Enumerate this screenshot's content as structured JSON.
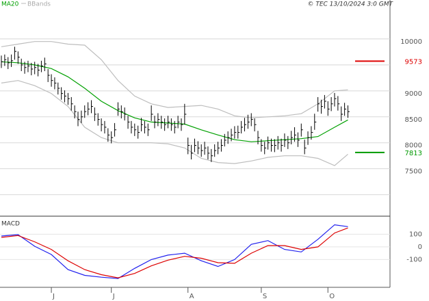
{
  "chart_data": [
    {
      "type": "ohlc",
      "legend": [
        "MA20",
        "BBands"
      ],
      "credit": "© TEC 13/10/2024 3:0 GMT",
      "categories": [
        null,
        null,
        null,
        null,
        null,
        null,
        null,
        null,
        null,
        null,
        null,
        null,
        null,
        null,
        null,
        "J",
        null,
        null,
        null,
        null,
        null,
        null,
        null,
        null,
        null,
        null,
        null,
        null,
        null,
        null,
        null,
        null,
        null,
        "J",
        null,
        null,
        null,
        null,
        null,
        null,
        null,
        null,
        null,
        null,
        null,
        null,
        null,
        null,
        null,
        null,
        null,
        null,
        null,
        null,
        null,
        null,
        "A",
        null,
        null,
        null,
        null,
        null,
        null,
        null,
        null,
        null,
        null,
        null,
        null,
        null,
        null,
        null,
        null,
        null,
        null,
        null,
        null,
        null,
        "S",
        null,
        null,
        null,
        null,
        null,
        null,
        null,
        null,
        null,
        null,
        null,
        null,
        null,
        null,
        null,
        null,
        null,
        null,
        null,
        "O",
        null,
        null,
        null,
        null,
        null,
        null
      ],
      "high": [
        9680,
        9700,
        9650,
        9700,
        9850,
        9760,
        9620,
        9560,
        9580,
        9540,
        9560,
        9520,
        9580,
        9640,
        9420,
        9320,
        9260,
        9160,
        9070,
        9010,
        8960,
        8880,
        8720,
        8600,
        8620,
        8720,
        8780,
        8820,
        8680,
        8570,
        8470,
        8420,
        8280,
        8220,
        8380,
        8780,
        8720,
        8680,
        8520,
        8420,
        8370,
        8330,
        8480,
        8420,
        8370,
        8720,
        8520,
        8570,
        8520,
        8470,
        8520,
        8470,
        8420,
        8520,
        8470,
        8750,
        8100,
        7960,
        8080,
        8030,
        7970,
        8020,
        7930,
        7880,
        7970,
        8020,
        8070,
        8170,
        8220,
        8270,
        8320,
        8330,
        8420,
        8480,
        8540,
        8570,
        8470,
        8230,
        8070,
        8020,
        8120,
        8080,
        8070,
        8130,
        8080,
        8180,
        8130,
        8230,
        8300,
        8200,
        8370,
        8060,
        8220,
        8320,
        8560,
        8880,
        8830,
        8920,
        8800,
        8880,
        8960,
        8900,
        8700,
        8770,
        8720
      ],
      "low": [
        9440,
        9480,
        9420,
        9460,
        9600,
        9520,
        9380,
        9330,
        9360,
        9300,
        9320,
        9280,
        9360,
        9380,
        9170,
        9080,
        9030,
        8930,
        8830,
        8780,
        8730,
        8620,
        8470,
        8320,
        8380,
        8480,
        8530,
        8570,
        8420,
        8330,
        8220,
        8180,
        8020,
        7990,
        8120,
        8520,
        8470,
        8430,
        8270,
        8180,
        8130,
        8080,
        8220,
        8180,
        8130,
        8420,
        8280,
        8320,
        8270,
        8230,
        8280,
        8230,
        8180,
        8280,
        8230,
        8350,
        7780,
        7680,
        7820,
        7780,
        7730,
        7770,
        7680,
        7630,
        7730,
        7780,
        7830,
        7930,
        7980,
        8030,
        8080,
        8080,
        8180,
        8220,
        8270,
        8320,
        8220,
        7970,
        7830,
        7780,
        7870,
        7830,
        7820,
        7870,
        7830,
        7920,
        7880,
        7970,
        8020,
        7920,
        8120,
        7780,
        7960,
        8060,
        8250,
        8600,
        8560,
        8660,
        8520,
        8610,
        8700,
        8620,
        8420,
        8520,
        8480
      ],
      "close": [
        9560,
        9600,
        9540,
        9580,
        9760,
        9650,
        9500,
        9450,
        9480,
        9420,
        9450,
        9400,
        9480,
        9520,
        9300,
        9200,
        9150,
        9050,
        8950,
        8900,
        8850,
        8750,
        8600,
        8450,
        8500,
        8600,
        8650,
        8700,
        8550,
        8450,
        8350,
        8300,
        8150,
        8100,
        8250,
        8650,
        8600,
        8550,
        8400,
        8300,
        8250,
        8200,
        8350,
        8300,
        8250,
        8550,
        8400,
        8450,
        8400,
        8350,
        8400,
        8350,
        8300,
        8400,
        8350,
        8550,
        7950,
        7800,
        7950,
        7900,
        7850,
        7900,
        7800,
        7750,
        7850,
        7900,
        7950,
        8050,
        8100,
        8150,
        8200,
        8200,
        8300,
        8350,
        8400,
        8450,
        8350,
        8100,
        7950,
        7900,
        8000,
        7950,
        7950,
        8000,
        7950,
        8050,
        8000,
        8100,
        8150,
        8050,
        8250,
        7900,
        8100,
        8200,
        8400,
        8750,
        8700,
        8800,
        8650,
        8750,
        8850,
        8750,
        8550,
        8650,
        8600
      ],
      "x": [
        0,
        5,
        10,
        15,
        20,
        25,
        30,
        35,
        40,
        45,
        50,
        55,
        60,
        65,
        70,
        75,
        80,
        85,
        90,
        95,
        100,
        104
      ],
      "series": [
        {
          "name": "MA20",
          "color": "#00a000",
          "values": [
            9560,
            9540,
            9500,
            9430,
            9270,
            9050,
            8800,
            8620,
            8480,
            8400,
            8380,
            8360,
            8250,
            8150,
            8060,
            8020,
            8040,
            8060,
            8080,
            8120,
            8300,
            8440
          ]
        },
        {
          "name": "BBands",
          "color": "#bdbdbd",
          "values": [
            9850,
            9900,
            9950,
            9950,
            9900,
            9880,
            9600,
            9200,
            8900,
            8750,
            8680,
            8700,
            8720,
            8650,
            8520,
            8480,
            8500,
            8520,
            8560,
            8750,
            9000,
            9020
          ]
        },
        {
          "color": "#bdbdbd",
          "values": [
            9150,
            9200,
            9100,
            8950,
            8700,
            8300,
            8100,
            8000,
            8000,
            8000,
            7980,
            7900,
            7700,
            7620,
            7600,
            7650,
            7720,
            7750,
            7750,
            7700,
            7560,
            7780
          ]
        }
      ],
      "annotations": [
        {
          "value": 9573,
          "color": "#dd0000"
        },
        {
          "value": 7813,
          "color": "#009900"
        }
      ],
      "ylim": [
        6600,
        10750
      ],
      "yticks": [
        7500,
        8000,
        8500,
        9000,
        10000
      ],
      "ygrid": [
        7000,
        7500,
        8000,
        8500,
        9000,
        9500,
        10000
      ]
    },
    {
      "type": "line",
      "title": "MACD",
      "x": [
        0,
        5,
        10,
        15,
        20,
        25,
        30,
        35,
        40,
        45,
        50,
        55,
        60,
        65,
        70,
        75,
        80,
        85,
        90,
        95,
        100,
        104
      ],
      "series": [
        {
          "color": "#2020ee",
          "values": [
            86,
            97,
            5,
            -60,
            -180,
            -225,
            -240,
            -250,
            -170,
            -100,
            -65,
            -50,
            -110,
            -155,
            -100,
            20,
            50,
            -20,
            -40,
            60,
            175,
            160
          ]
        },
        {
          "color": "#dd0000",
          "values": [
            75,
            90,
            40,
            -20,
            -110,
            -180,
            -220,
            -245,
            -210,
            -150,
            -105,
            -75,
            -90,
            -125,
            -130,
            -50,
            10,
            10,
            -20,
            0,
            110,
            150
          ]
        }
      ],
      "ylim": [
        -320,
        243
      ],
      "yticks": [
        100,
        0,
        -100
      ]
    }
  ]
}
